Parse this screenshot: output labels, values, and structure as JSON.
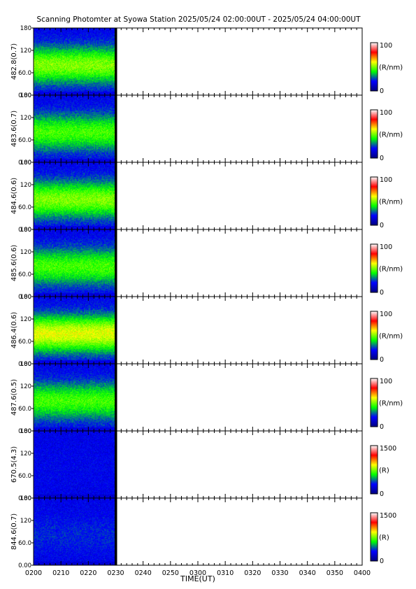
{
  "title": "Scanning Photomter at Syowa Station  2025/05/24 02:00:00UT - 2025/05/24 04:00:00UT",
  "colors": {
    "colormap": [
      "#00007f",
      "#0000ff",
      "#00ff00",
      "#ffff00",
      "#ff0000",
      "#ffffff"
    ],
    "frame": "#000000",
    "data_gap": "#000000"
  },
  "chart_data": {
    "type": "heatmap",
    "x_range": [
      "0200",
      "0400"
    ],
    "x_ticks": [
      "0200",
      "0210",
      "0220",
      "0230",
      "0240",
      "0250",
      "0300",
      "0310",
      "0320",
      "0330",
      "0340",
      "0350",
      "0400"
    ],
    "xlabel": "TIME(UT)",
    "data_end": "0230",
    "y_ticks": [
      "0.00",
      "60.0",
      "120",
      "180"
    ],
    "y_range": [
      0,
      180
    ],
    "grid": false,
    "panels": [
      {
        "ylabel": "482.8(0.7)",
        "colorbar_max": "100",
        "colorbar_min": "0",
        "unit": "(R/nm)",
        "peak_intensity": 0.5
      },
      {
        "ylabel": "483.6(0.7)",
        "colorbar_max": "100",
        "colorbar_min": "0",
        "unit": "(R/nm)",
        "peak_intensity": 0.45
      },
      {
        "ylabel": "484.6(0.6)",
        "colorbar_max": "100",
        "colorbar_min": "0",
        "unit": "(R/nm)",
        "peak_intensity": 0.5
      },
      {
        "ylabel": "485.6(0.6)",
        "colorbar_max": "100",
        "colorbar_min": "0",
        "unit": "(R/nm)",
        "peak_intensity": 0.45
      },
      {
        "ylabel": "486.4(0.6)",
        "colorbar_max": "100",
        "colorbar_min": "0",
        "unit": "(R/nm)",
        "peak_intensity": 0.58
      },
      {
        "ylabel": "487.6(0.5)",
        "colorbar_max": "100",
        "colorbar_min": "0",
        "unit": "(R/nm)",
        "peak_intensity": 0.45
      },
      {
        "ylabel": "670.5(4.3)",
        "colorbar_max": "1500",
        "colorbar_min": "0",
        "unit": "(R)",
        "peak_intensity": 0.18
      },
      {
        "ylabel": "844.6(0.7)",
        "colorbar_max": "1500",
        "colorbar_min": "0",
        "unit": "(R)",
        "peak_intensity": 0.22
      }
    ]
  }
}
